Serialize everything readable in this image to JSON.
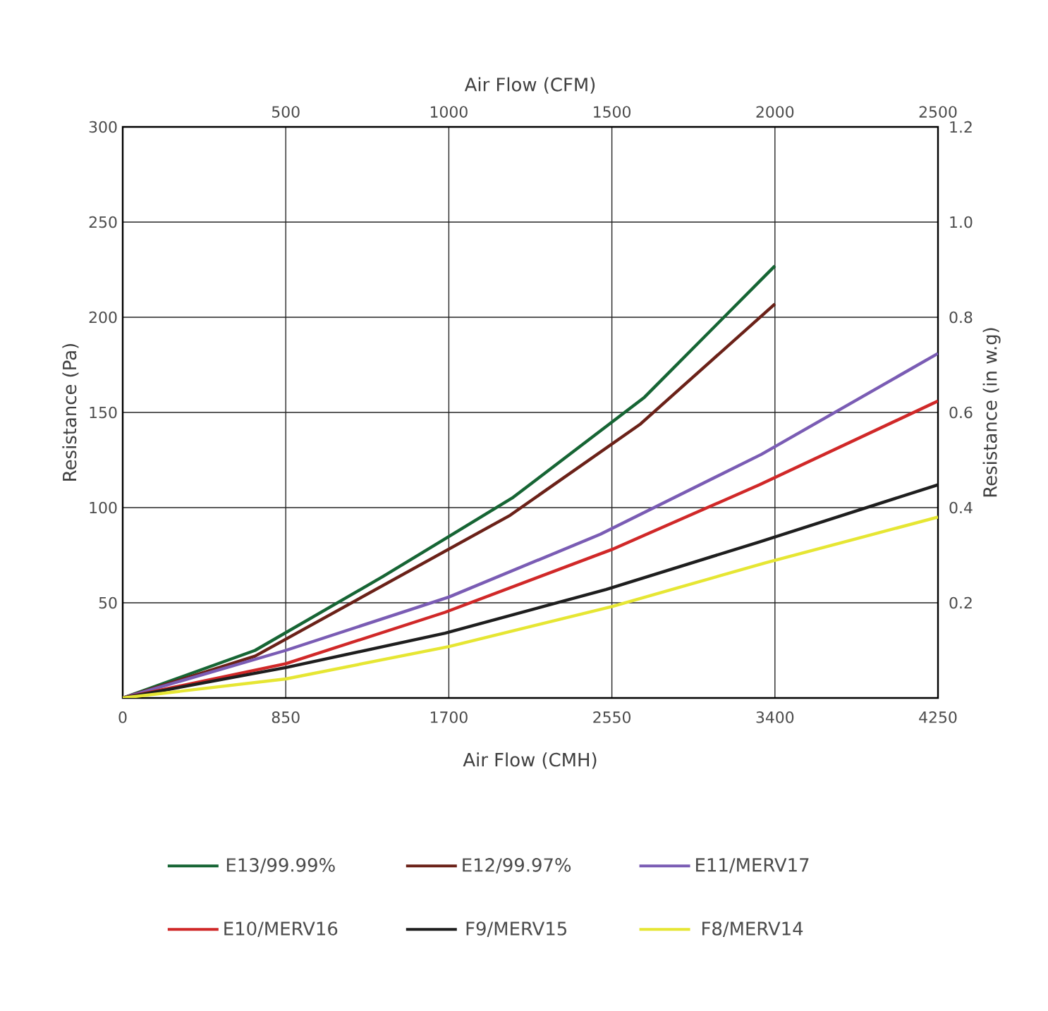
{
  "chart_data": {
    "type": "line",
    "xlabel": "Air Flow (CMH)",
    "x2label": "Air Flow (CFM)",
    "ylabel": "Resistance (Pa)",
    "y2label": "Resistance (in w.g)",
    "xlim": [
      0,
      4250
    ],
    "xticks": [
      0,
      850,
      1700,
      2550,
      3400,
      4250
    ],
    "x2lim": [
      0,
      2500
    ],
    "x2ticks": [
      500,
      1000,
      1500,
      2000,
      2500
    ],
    "ylim": [
      0,
      300
    ],
    "yticks": [
      50,
      100,
      150,
      200,
      250,
      300
    ],
    "y2lim": [
      0,
      1.2
    ],
    "y2ticks": [
      0.2,
      0.4,
      0.6,
      0.8,
      {
        "value": 1,
        "label": "1.0"
      },
      1.2
    ],
    "grid": true,
    "legend": "bottom",
    "marker": "none",
    "line_style": "solid",
    "series": [
      {
        "name": "E13/99.99%",
        "color": "#166534",
        "x": [
          0,
          690,
          1360,
          2030,
          2720,
          3400
        ],
        "values": [
          0,
          25,
          64,
          105,
          158,
          227
        ]
      },
      {
        "name": "E12/99.97%",
        "color": "#6b2118",
        "x": [
          0,
          690,
          2020,
          2700,
          3400
        ],
        "values": [
          0,
          22,
          96,
          144,
          207
        ]
      },
      {
        "name": "E11/MERV17",
        "color": "#7a5cb4",
        "x": [
          0,
          850,
          1700,
          2490,
          3330,
          4250
        ],
        "values": [
          0,
          25,
          53,
          86,
          128,
          181
        ]
      },
      {
        "name": "E10/MERV16",
        "color": "#d02828",
        "x": [
          0,
          850,
          1680,
          2550,
          3320,
          4250
        ],
        "values": [
          0,
          18,
          45,
          78,
          112,
          156
        ]
      },
      {
        "name": "F9/MERV15",
        "color": "#1e1e1e",
        "x": [
          0,
          850,
          1680,
          2520,
          3320,
          4250
        ],
        "values": [
          0,
          16,
          34,
          57,
          82,
          112
        ]
      },
      {
        "name": "F8/MERV14",
        "color": "#e6e633",
        "x": [
          0,
          850,
          1700,
          2550,
          3350,
          4250
        ],
        "values": [
          0,
          10,
          27,
          48,
          71,
          95
        ]
      }
    ]
  }
}
